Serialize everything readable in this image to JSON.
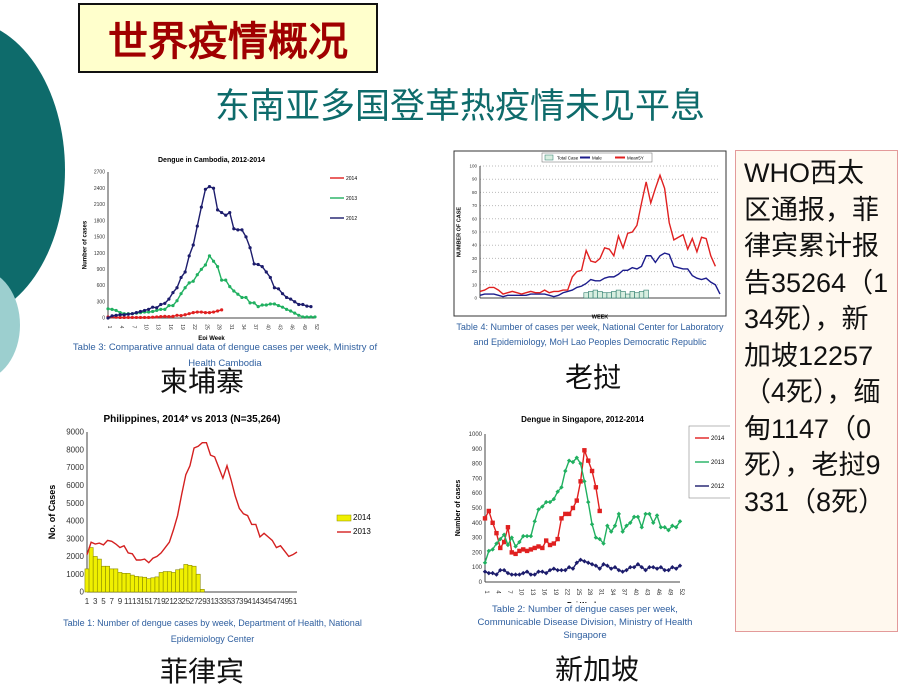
{
  "slide": {
    "title": "世界疫情概况",
    "subtitle": "东南亚多国登革热疫情未见平息",
    "note": "WHO西太区通报，菲律宾累计报告35264（134死），新加坡12257（4死），缅甸1147（0死），老挝9331（8死）",
    "countries": {
      "cambodia": "柬埔寨",
      "laos": "老挝",
      "philippines": "菲律宾",
      "singapore": "新加坡"
    },
    "colors": {
      "title": "#a00000",
      "subtitle": "#0e6b6b",
      "accent": "#0e6b6b"
    }
  },
  "chart_data": [
    {
      "id": "cambodia",
      "type": "line",
      "title": "Dengue in Cambodia, 2012-2014",
      "xlabel": "Epi Week",
      "ylabel": "Number of cases",
      "ylim": [
        0,
        2700
      ],
      "yticks": [
        0,
        300,
        600,
        900,
        1200,
        1500,
        1800,
        2100,
        2400,
        2700
      ],
      "xlim": [
        1,
        52
      ],
      "xticks": [
        1,
        4,
        7,
        10,
        13,
        16,
        19,
        22,
        25,
        28,
        31,
        34,
        37,
        40,
        43,
        46,
        49,
        52
      ],
      "grid": false,
      "legend": "right",
      "caption": "Table 3: Comparative annual data of dengue cases per week, Ministry of Health Cambodia",
      "series": [
        {
          "name": "2014",
          "color": "#e02020",
          "marker": "circle",
          "values": [
            20,
            20,
            15,
            10,
            10,
            10,
            10,
            10,
            10,
            10,
            10,
            15,
            20,
            25,
            30,
            25,
            30,
            50,
            45,
            60,
            80,
            100,
            110,
            110,
            100,
            100,
            110,
            130,
            150
          ]
        },
        {
          "name": "2013",
          "color": "#20b060",
          "marker": "circle",
          "values": [
            170,
            160,
            140,
            100,
            80,
            80,
            80,
            90,
            100,
            110,
            110,
            120,
            140,
            160,
            160,
            230,
            230,
            320,
            450,
            560,
            650,
            680,
            800,
            900,
            980,
            1150,
            1050,
            950,
            700,
            700,
            580,
            500,
            440,
            380,
            380,
            280,
            280,
            210,
            240,
            240,
            260,
            260,
            230,
            200,
            160,
            130,
            90,
            50,
            20,
            20,
            20,
            20
          ]
        },
        {
          "name": "2012",
          "color": "#1c1c6c",
          "marker": "circle",
          "values": [
            0,
            40,
            50,
            60,
            60,
            70,
            80,
            100,
            120,
            140,
            160,
            200,
            190,
            250,
            270,
            350,
            470,
            560,
            750,
            850,
            1150,
            1350,
            1700,
            2050,
            2380,
            2430,
            2400,
            2000,
            1950,
            1900,
            1950,
            1650,
            1630,
            1630,
            1500,
            1300,
            1000,
            990,
            950,
            850,
            750,
            560,
            540,
            450,
            380,
            350,
            300,
            250,
            250,
            220,
            210
          ]
        }
      ]
    },
    {
      "id": "laos",
      "type": "line",
      "title": "",
      "xlabel": "WEEK",
      "ylabel": "NUMBER OF CASE",
      "ylim": [
        0,
        100
      ],
      "yticks": [
        0,
        10,
        20,
        30,
        40,
        50,
        60,
        70,
        80,
        90,
        100
      ],
      "xlim": [
        1,
        53
      ],
      "xticks": [],
      "grid": true,
      "legend": "top",
      "caption": "Table 4: Number of cases  per week, National Center for Laboratory and Epidemiology, MoH Lao Peoples Democratic Republic",
      "bars": {
        "name": "Total Case",
        "color": "#d8eee0",
        "stroke": "#2a7a6a",
        "start": 24,
        "values": [
          4,
          5,
          6,
          5,
          4,
          4,
          5,
          6,
          5,
          3,
          5,
          4,
          5,
          6
        ]
      },
      "series": [
        {
          "name": "Male",
          "color": "#1c1c8c",
          "marker": "none",
          "values": [
            2,
            3,
            3,
            3,
            2,
            1,
            2,
            2,
            2,
            2,
            2,
            3,
            3,
            3,
            3,
            2,
            1,
            2,
            4,
            5,
            6,
            8,
            9,
            11,
            14,
            13,
            13,
            15,
            16,
            16,
            18,
            21,
            21,
            23,
            22,
            24,
            32,
            32,
            27,
            32,
            34,
            33,
            24,
            23,
            22,
            22,
            17,
            15,
            14,
            15,
            12,
            10,
            3
          ]
        },
        {
          "name": "Mean5Y",
          "color": "#e02020",
          "marker": "none",
          "values": [
            5,
            6,
            8,
            8,
            6,
            3,
            4,
            5,
            4,
            3,
            4,
            5,
            4,
            4,
            6,
            4,
            5,
            5,
            6,
            6,
            16,
            20,
            21,
            36,
            28,
            27,
            30,
            38,
            37,
            32,
            47,
            38,
            49,
            50,
            55,
            72,
            88,
            72,
            83,
            93,
            83,
            57,
            44,
            46,
            48,
            37,
            45,
            35,
            46,
            45,
            32,
            24
          ]
        }
      ]
    },
    {
      "id": "philippines",
      "type": "bar+line",
      "title": "Philippines,   2014* vs 2013 (N=35,264)",
      "xlabel": "Morbidity Week",
      "ylabel": "No. of Cases",
      "ylim": [
        0,
        9000
      ],
      "yticks": [
        0,
        1000,
        2000,
        3000,
        4000,
        5000,
        6000,
        7000,
        8000,
        9000
      ],
      "xlim": [
        1,
        52
      ],
      "xticks": [
        1,
        3,
        5,
        7,
        9,
        11,
        13,
        15,
        17,
        19,
        21,
        23,
        25,
        27,
        29,
        31,
        33,
        35,
        37,
        39,
        41,
        43,
        45,
        47,
        49,
        51
      ],
      "grid": false,
      "legend": "right",
      "caption": "Table 1: Number of dengue cases by week, Department of Health, National Epidemiology Center",
      "bars": {
        "name": "2014",
        "color": "#f0f000",
        "stroke": "#8a8a00",
        "start": 1,
        "values": [
          1300,
          2500,
          2000,
          1850,
          1450,
          1450,
          1300,
          1300,
          1100,
          1050,
          1050,
          950,
          880,
          850,
          830,
          750,
          800,
          850,
          1100,
          1150,
          1150,
          1100,
          1250,
          1300,
          1550,
          1500,
          1450,
          1000,
          150
        ]
      },
      "series": [
        {
          "name": "2013",
          "color": "#d42020",
          "marker": "none",
          "values": [
            2100,
            2800,
            2700,
            2750,
            2650,
            2900,
            2850,
            2700,
            2500,
            2600,
            2200,
            2150,
            1800,
            1800,
            1850,
            1650,
            1900,
            2000,
            2200,
            2500,
            2800,
            3500,
            4300,
            5500,
            6600,
            7100,
            8100,
            8200,
            8400,
            8400,
            7700,
            7600,
            7000,
            6400,
            7100,
            6300,
            5400,
            4700,
            4400,
            4300,
            3800,
            3800,
            3100,
            3300,
            3100,
            2900,
            2500,
            2600,
            2300,
            2000,
            2100,
            2250
          ]
        }
      ]
    },
    {
      "id": "singapore",
      "type": "line",
      "title": "Dengue in Singapore, 2012-2014",
      "xlabel": "Epi Week",
      "ylabel": "Number of cases",
      "ylim": [
        0,
        1000
      ],
      "yticks": [
        0,
        100,
        200,
        300,
        400,
        500,
        600,
        700,
        800,
        900,
        1000
      ],
      "xlim": [
        1,
        52
      ],
      "xticks": [
        1,
        4,
        7,
        10,
        13,
        16,
        19,
        22,
        25,
        28,
        31,
        34,
        37,
        40,
        43,
        46,
        49,
        52
      ],
      "grid": false,
      "legend": "right",
      "caption": "Table 2: Number of dengue cases per week, Communicable Disease Division, Ministry of Health Singapore",
      "series": [
        {
          "name": "2014",
          "color": "#e02020",
          "marker": "square",
          "values": [
            430,
            480,
            400,
            330,
            230,
            270,
            370,
            200,
            190,
            210,
            220,
            210,
            220,
            230,
            240,
            230,
            280,
            250,
            260,
            290,
            430,
            460,
            460,
            500,
            550,
            680,
            890,
            820,
            750,
            640,
            480
          ]
        },
        {
          "name": "2013",
          "color": "#20b060",
          "marker": "diamond",
          "values": [
            130,
            210,
            220,
            260,
            290,
            320,
            250,
            300,
            240,
            270,
            310,
            310,
            310,
            410,
            490,
            510,
            540,
            540,
            560,
            610,
            640,
            750,
            820,
            810,
            840,
            800,
            680,
            540,
            390,
            300,
            290,
            260,
            380,
            340,
            380,
            460,
            340,
            380,
            400,
            440,
            440,
            370,
            460,
            460,
            400,
            450,
            370,
            370,
            350,
            380,
            370,
            410
          ]
        },
        {
          "name": "2012",
          "color": "#1c1c6c",
          "marker": "diamond",
          "values": [
            70,
            60,
            60,
            50,
            80,
            80,
            60,
            50,
            50,
            50,
            60,
            70,
            50,
            50,
            70,
            70,
            60,
            80,
            90,
            80,
            80,
            80,
            100,
            90,
            130,
            150,
            140,
            130,
            120,
            110,
            90,
            120,
            110,
            90,
            100,
            80,
            70,
            80,
            100,
            100,
            120,
            100,
            80,
            100,
            100,
            90,
            100,
            80,
            80,
            100,
            90,
            110
          ]
        }
      ]
    }
  ]
}
